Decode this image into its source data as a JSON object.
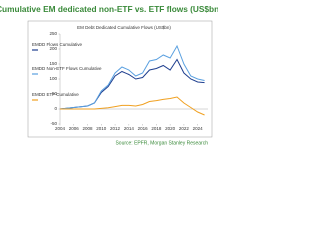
{
  "chart_data": {
    "type": "line",
    "title": "Cumulative EM dedicated non-ETF vs. ETF flows (US$bn)",
    "subtitle": "EM Debt Dedicated Cumulative Flows (US$bn)",
    "source": "Source: EPFR, Morgan Stanley Research",
    "x": [
      2004,
      2006,
      2008,
      2009,
      2010,
      2011,
      2012,
      2013,
      2014,
      2015,
      2016,
      2017,
      2018,
      2019,
      2020,
      2021,
      2022,
      2023,
      2024,
      2025
    ],
    "xlim": [
      2004,
      2025.5
    ],
    "xticks": [
      2004,
      2006,
      2008,
      2010,
      2012,
      2014,
      2016,
      2018,
      2020,
      2022,
      2024
    ],
    "ylim": [
      -50,
      250
    ],
    "yticks": [
      -50,
      0,
      50,
      100,
      150,
      200,
      250
    ],
    "series": [
      {
        "name": "EMDD Flows Cumulative",
        "color": "#1f3f8f",
        "values": [
          0,
          5,
          10,
          20,
          55,
          75,
          110,
          125,
          115,
          100,
          105,
          130,
          135,
          145,
          130,
          165,
          120,
          100,
          90,
          88
        ]
      },
      {
        "name": "EMDD Non-ETF Flows Cumulative",
        "color": "#5aa0e0",
        "values": [
          0,
          5,
          10,
          20,
          60,
          80,
          120,
          140,
          130,
          110,
          120,
          160,
          165,
          180,
          170,
          210,
          150,
          110,
          100,
          95
        ]
      },
      {
        "name": "EMDD ETF Cumulative",
        "color": "#f0a020",
        "values": [
          0,
          0,
          0,
          0,
          2,
          4,
          8,
          12,
          12,
          10,
          15,
          25,
          28,
          32,
          35,
          40,
          20,
          5,
          -10,
          -20
        ]
      }
    ]
  }
}
